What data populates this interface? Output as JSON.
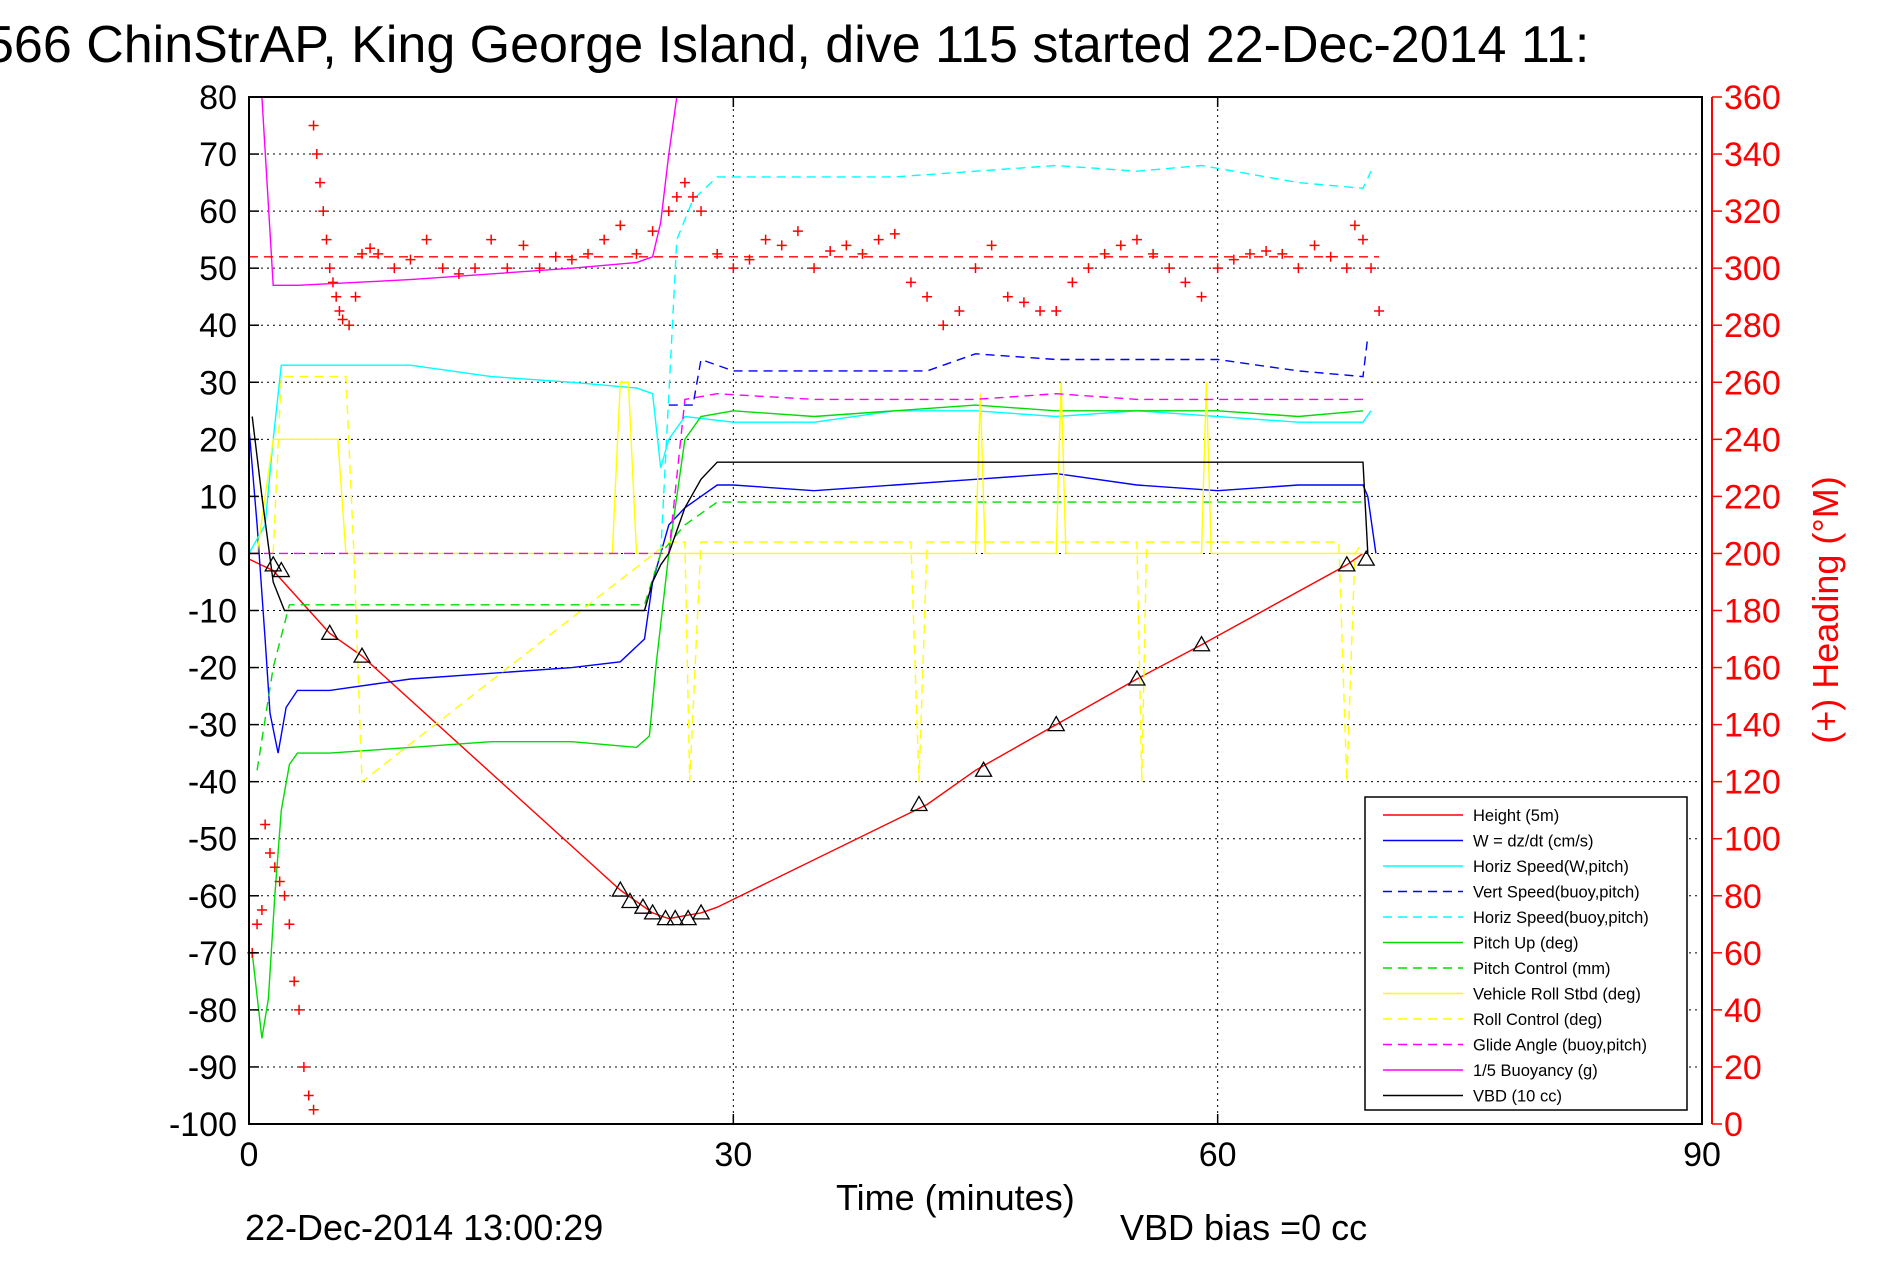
{
  "chart_data": {
    "type": "line",
    "title": "566 ChinStrAP, King George Island, dive 115 started 22-Dec-2014 11:",
    "xlabel": "Time (minutes)",
    "ylabel": "",
    "ylabel_right": "(+) Heading (°M)",
    "xlim": [
      0,
      90
    ],
    "ylim": [
      -100,
      80
    ],
    "ylim_right": [
      0,
      360
    ],
    "xticks": [
      0,
      30,
      60,
      90
    ],
    "yticks": [
      80,
      70,
      60,
      50,
      40,
      30,
      20,
      10,
      0,
      -10,
      -20,
      -30,
      -40,
      -50,
      -60,
      -70,
      -80,
      -90,
      -100
    ],
    "yticks_right": [
      360,
      340,
      320,
      300,
      280,
      260,
      240,
      220,
      200,
      180,
      160,
      140,
      120,
      100,
      80,
      60,
      40,
      20,
      0
    ],
    "grid": true,
    "legend_position": "bottom-right",
    "timestamp": "22-Dec-2014 13:00:29",
    "vbd_bias": "VBD bias =0 cc",
    "series": [
      {
        "name": "Height (5m)",
        "color": "#ff0000",
        "style": "solid",
        "x": [
          0,
          1.5,
          5,
          7,
          23,
          25,
          26,
          27,
          28,
          29,
          42,
          45,
          50,
          55,
          59,
          68,
          69
        ],
        "y": [
          -1,
          -3,
          -14,
          -18,
          -59,
          -63,
          -64,
          -63.5,
          -63,
          -62,
          -44,
          -38,
          -30,
          -22,
          -16,
          -2,
          0
        ]
      },
      {
        "name": "W = dz/dt (cm/s)",
        "color": "#0000ff",
        "style": "solid",
        "x": [
          0,
          0.5,
          1,
          1.3,
          1.8,
          2.3,
          3,
          5,
          10,
          15,
          20,
          23,
          24.5,
          25,
          25.5,
          26,
          27,
          28,
          29,
          30,
          35,
          40,
          45,
          50,
          55,
          60,
          65,
          69,
          69.3,
          69.8
        ],
        "y": [
          22,
          5,
          -15,
          -28,
          -35,
          -27,
          -24,
          -24,
          -22,
          -21,
          -20,
          -19,
          -15,
          -5,
          0,
          5,
          8,
          10,
          12,
          12,
          11,
          12,
          13,
          14,
          12,
          11,
          12,
          12,
          10,
          0
        ]
      },
      {
        "name": "Horiz Speed(W,pitch)",
        "color": "#00ffff",
        "style": "solid",
        "x": [
          0,
          1,
          1.5,
          2,
          5,
          10,
          15,
          20,
          24,
          25,
          25.5,
          26,
          27,
          30,
          35,
          40,
          45,
          50,
          55,
          60,
          65,
          69,
          69.5
        ],
        "y": [
          0,
          5,
          20,
          33,
          33,
          33,
          31,
          30,
          29,
          28,
          15,
          20,
          24,
          23,
          23,
          25,
          25,
          24,
          25,
          24,
          23,
          23,
          25
        ]
      },
      {
        "name": "Vert Speed(buoy,pitch)",
        "color": "#0000ff",
        "style": "dashed",
        "x": [
          26,
          27.5,
          28,
          30,
          35,
          40,
          42,
          45,
          50,
          55,
          60,
          65,
          69,
          69.3
        ],
        "y": [
          26,
          26,
          34,
          32,
          32,
          32,
          32,
          35,
          34,
          34,
          34,
          32,
          31,
          38
        ]
      },
      {
        "name": "Horiz Speed(buoy,pitch)",
        "color": "#00ffff",
        "style": "dashed",
        "x": [
          25.5,
          26.5,
          27.5,
          29,
          35,
          40,
          45,
          50,
          55,
          59,
          65,
          69,
          69.5
        ],
        "y": [
          0,
          55,
          62,
          66,
          66,
          66,
          67,
          68,
          67,
          68,
          65,
          64,
          67
        ]
      },
      {
        "name": "Pitch Up (deg)",
        "color": "#00dd00",
        "style": "solid",
        "x": [
          0.2,
          0.8,
          1.2,
          1.6,
          2,
          2.5,
          3,
          5,
          10,
          15,
          20,
          24,
          24.8,
          25.2,
          26,
          27,
          28,
          30,
          35,
          40,
          45,
          50,
          55,
          60,
          65,
          69
        ],
        "y": [
          -70,
          -85,
          -78,
          -60,
          -45,
          -37,
          -35,
          -35,
          -34,
          -33,
          -33,
          -34,
          -32,
          -20,
          0,
          20,
          24,
          25,
          24,
          25,
          26,
          25,
          25,
          25,
          24,
          25
        ]
      },
      {
        "name": "Pitch Control (mm)",
        "color": "#00dd00",
        "style": "dashed",
        "x": [
          0.5,
          1.5,
          2.5,
          24.5,
          25.5,
          27,
          29,
          69
        ],
        "y": [
          -38,
          -20,
          -9,
          -9,
          0,
          5,
          9,
          9
        ]
      },
      {
        "name": "Vehicle Roll Stbd (deg)",
        "color": "#ffff00",
        "style": "solid",
        "x": [
          0.5,
          1.5,
          2,
          5.5,
          6,
          22.5,
          23,
          23.5,
          24,
          25,
          26,
          45,
          45.3,
          45.6,
          50,
          50.3,
          50.6,
          59,
          59.3,
          59.6,
          69
        ],
        "y": [
          0,
          20,
          20,
          20,
          0,
          0,
          30,
          30,
          0,
          0,
          0,
          0,
          28,
          0,
          0,
          30,
          0,
          0,
          30,
          0,
          0
        ]
      },
      {
        "name": "Roll Control (deg)",
        "color": "#ffff00",
        "style": "dashed",
        "x": [
          1.5,
          2,
          6,
          6.5,
          7,
          26,
          27,
          27.3,
          28,
          29,
          41,
          41.5,
          42,
          55,
          55.3,
          55.6,
          67.5,
          68,
          68.5,
          69
        ],
        "y": [
          0,
          31,
          31,
          0,
          -40,
          2,
          2,
          -40,
          2,
          2,
          2,
          -40,
          2,
          2,
          -40,
          2,
          2,
          -40,
          0,
          2
        ]
      },
      {
        "name": "Glide Angle (buoy,pitch)",
        "color": "#ff00ff",
        "style": "dashed",
        "x": [
          0,
          26,
          27,
          29,
          35,
          40,
          45,
          50,
          55,
          60,
          65,
          69
        ],
        "y": [
          0,
          0,
          27,
          28,
          27,
          27,
          27,
          28,
          27,
          27,
          27,
          27
        ]
      },
      {
        "name": "1/5 Buoyancy (g)",
        "color": "#ff00ff",
        "style": "solid",
        "x": [
          0.8,
          1.5,
          3,
          10,
          20,
          24,
          25,
          25.5,
          26,
          26.5
        ],
        "y": [
          80,
          47,
          47,
          48,
          50,
          51,
          52,
          58,
          70,
          80
        ]
      },
      {
        "name": "VBD (10 cc)",
        "color": "#000000",
        "style": "solid",
        "x": [
          0.2,
          0.8,
          1.5,
          2.2,
          24.5,
          25,
          25.5,
          26,
          27,
          28,
          29,
          69,
          69.3
        ],
        "y": [
          24,
          10,
          -5,
          -10,
          -10,
          -5,
          -2,
          0,
          8,
          13,
          16,
          16,
          0
        ]
      }
    ],
    "markers": [
      {
        "name": "(+) Heading",
        "axis": "right",
        "color": "#ff0000",
        "symbol": "+",
        "x": [
          4.0,
          4.2,
          4.4,
          4.6,
          4.8,
          5.0,
          5.2,
          5.4,
          5.6,
          5.8,
          6.2,
          6.6,
          7.0,
          7.5,
          8,
          9,
          10,
          11,
          12,
          13,
          14,
          15,
          16,
          17,
          18,
          19,
          20,
          21,
          22,
          23,
          24,
          25,
          26,
          26.5,
          27,
          27.5,
          28,
          29,
          30,
          31,
          32,
          33,
          34,
          35,
          36,
          37,
          38,
          39,
          40,
          41,
          42,
          43,
          44,
          45,
          46,
          47,
          48,
          49,
          50,
          51,
          52,
          53,
          54,
          55,
          56,
          57,
          58,
          59,
          60,
          61,
          62,
          63,
          64,
          65,
          66,
          67,
          68,
          68.5,
          69,
          69.5,
          70
        ],
        "y": [
          350,
          340,
          330,
          320,
          310,
          300,
          295,
          290,
          285,
          282,
          280,
          290,
          305,
          307,
          305,
          300,
          303,
          310,
          300,
          298,
          300,
          310,
          300,
          308,
          300,
          304,
          303,
          305,
          310,
          315,
          305,
          313,
          320,
          325,
          330,
          325,
          320,
          305,
          300,
          303,
          310,
          308,
          313,
          300,
          306,
          308,
          305,
          310,
          312,
          295,
          290,
          280,
          285,
          300,
          308,
          290,
          288,
          285,
          285,
          295,
          300,
          305,
          308,
          310,
          305,
          300,
          295,
          290,
          300,
          303,
          305,
          306,
          305,
          300,
          308,
          304,
          300,
          315,
          310,
          300,
          285
        ]
      },
      {
        "name": "(+) Heading early",
        "axis": "right",
        "color": "#ff0000",
        "symbol": "+",
        "x": [
          0.2,
          0.5,
          0.8,
          1.0,
          1.3,
          1.6,
          1.9,
          2.2,
          2.5,
          2.8,
          3.1,
          3.4,
          3.7,
          4.0
        ],
        "y": [
          60,
          70,
          75,
          105,
          95,
          90,
          85,
          80,
          70,
          50,
          40,
          20,
          10,
          5
        ]
      },
      {
        "name": "Heading mean",
        "axis": "right",
        "color": "#ff0000",
        "style": "dashed",
        "x": [
          0,
          70
        ],
        "y": [
          304,
          304
        ]
      },
      {
        "name": "Dive triangles",
        "axis": "left",
        "color": "#000000",
        "symbol": "triangle",
        "x": [
          1.5,
          2.0,
          5.0,
          7.0,
          23.0,
          23.6,
          24.4,
          25.0,
          25.8,
          26.4,
          27.2,
          28.0,
          41.5,
          45.5,
          50.0,
          55.0,
          59.0,
          68.0,
          69.2
        ],
        "y": [
          -2,
          -3,
          -14,
          -18,
          -59,
          -61,
          -62,
          -63,
          -64,
          -64,
          -64,
          -63,
          -44,
          -38,
          -30,
          -22,
          -16,
          -2,
          -1
        ]
      }
    ]
  }
}
